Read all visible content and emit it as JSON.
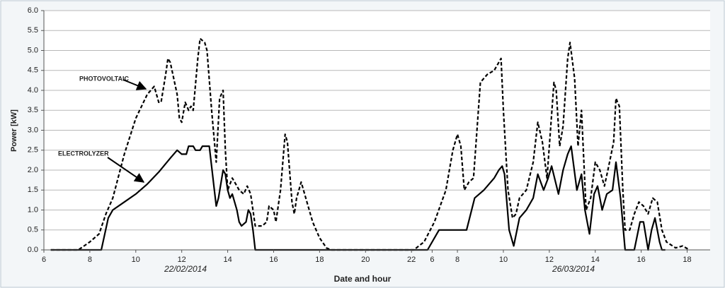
{
  "chart_data": {
    "type": "line",
    "xlabel": "Date and hour",
    "ylabel": "Power [kW]",
    "date_labels": [
      "22/02/2014",
      "26/03/2014"
    ],
    "xlim": [
      6,
      35
    ],
    "ylim": [
      0,
      6
    ],
    "xticks": [
      6,
      8,
      10,
      12,
      14,
      16,
      18,
      20,
      22,
      {
        "value": 22.9,
        "label": "6"
      },
      {
        "value": 24,
        "label": "8"
      },
      {
        "value": 26,
        "label": "10"
      },
      {
        "value": 28,
        "label": "12"
      },
      {
        "value": 30,
        "label": "14"
      },
      {
        "value": 32,
        "label": "16"
      },
      {
        "value": 34,
        "label": "18"
      }
    ],
    "yticks": [
      {
        "value": 0,
        "label": "0.0"
      },
      {
        "value": 0.5,
        "label": "0.5"
      },
      {
        "value": 1,
        "label": "1.0"
      },
      {
        "value": 1.5,
        "label": "1.5"
      },
      {
        "value": 2,
        "label": "2.0"
      },
      {
        "value": 2.5,
        "label": "2.5"
      },
      {
        "value": 3,
        "label": "3.0"
      },
      {
        "value": 3.5,
        "label": "3.5"
      },
      {
        "value": 4,
        "label": "4.0"
      },
      {
        "value": 4.5,
        "label": "4.5"
      },
      {
        "value": 5,
        "label": "5.0"
      },
      {
        "value": 5.5,
        "label": "5.5"
      },
      {
        "value": 6,
        "label": "6.0"
      }
    ],
    "grid": true,
    "series": [
      {
        "name": "PHOTOVOLTAIC",
        "color": "#000000",
        "dashed": true,
        "x": [
          6.3,
          7.5,
          8.0,
          8.4,
          8.7,
          9.0,
          9.5,
          10.0,
          10.5,
          10.8,
          11.0,
          11.1,
          11.3,
          11.4,
          11.5,
          11.8,
          11.9,
          12.0,
          12.15,
          12.3,
          12.4,
          12.5,
          12.7,
          12.8,
          13.0,
          13.1,
          13.3,
          13.5,
          13.65,
          13.8,
          13.9,
          14.0,
          14.2,
          14.4,
          14.5,
          14.7,
          14.85,
          15.0,
          15.2,
          15.5,
          15.7,
          15.8,
          16.0,
          16.1,
          16.3,
          16.5,
          16.6,
          16.8,
          16.9,
          17.0,
          17.2,
          17.4,
          17.7,
          18.0,
          18.3,
          18.5,
          22.1,
          22.55,
          23.0,
          23.5,
          23.8,
          24.0,
          24.15,
          24.3,
          24.5,
          24.7,
          25.0,
          25.3,
          25.6,
          25.9,
          26.0,
          26.2,
          26.4,
          26.55,
          26.7,
          27.0,
          27.3,
          27.5,
          27.7,
          27.9,
          28.05,
          28.2,
          28.3,
          28.45,
          28.6,
          28.8,
          28.9,
          29.1,
          29.25,
          29.4,
          29.6,
          29.8,
          30.0,
          30.2,
          30.4,
          30.55,
          30.8,
          30.9,
          31.05,
          31.2,
          31.3,
          31.5,
          31.7,
          31.9,
          32.1,
          32.3,
          32.5,
          32.7,
          32.9,
          33.1,
          33.5,
          33.8,
          34.1
        ],
        "values": [
          0,
          0,
          0.2,
          0.4,
          0.9,
          1.3,
          2.4,
          3.3,
          3.9,
          4.1,
          3.7,
          3.7,
          4.4,
          4.8,
          4.7,
          3.9,
          3.3,
          3.2,
          3.7,
          3.5,
          3.6,
          3.5,
          4.8,
          5.3,
          5.2,
          5.0,
          3.5,
          2.2,
          3.8,
          4.0,
          2.5,
          1.5,
          1.8,
          1.6,
          1.5,
          1.4,
          1.6,
          1.4,
          0.6,
          0.6,
          0.7,
          1.1,
          1.0,
          0.7,
          1.5,
          2.9,
          2.7,
          1.2,
          0.9,
          1.3,
          1.7,
          1.3,
          0.7,
          0.3,
          0.05,
          0,
          0,
          0.2,
          0.7,
          1.5,
          2.5,
          2.9,
          2.6,
          1.5,
          1.7,
          1.8,
          4.2,
          4.4,
          4.5,
          4.8,
          3.5,
          1.5,
          0.8,
          0.9,
          1.3,
          1.5,
          2.2,
          3.2,
          2.7,
          1.8,
          3.0,
          4.2,
          4.0,
          2.6,
          3.1,
          4.8,
          5.2,
          4.3,
          2.6,
          3.5,
          1.0,
          1.3,
          2.2,
          2.0,
          1.6,
          2.0,
          2.7,
          3.8,
          3.6,
          1.5,
          0.5,
          0.5,
          0.9,
          1.2,
          1.1,
          0.9,
          1.3,
          1.2,
          0.5,
          0.2,
          0.05,
          0.1,
          0
        ]
      },
      {
        "name": "ELECTROLYZER",
        "color": "#000000",
        "dashed": false,
        "x": [
          6.3,
          8.5,
          8.8,
          9.0,
          9.5,
          10.0,
          10.5,
          11.0,
          11.5,
          11.8,
          12.0,
          12.2,
          12.3,
          12.5,
          12.6,
          12.8,
          12.9,
          13.2,
          13.4,
          13.5,
          13.6,
          13.8,
          13.9,
          14.0,
          14.1,
          14.2,
          14.4,
          14.5,
          14.6,
          14.8,
          14.9,
          15.0,
          15.1,
          15.2,
          22.7,
          23.2,
          24.4,
          24.75,
          25.15,
          25.6,
          25.8,
          25.95,
          26.05,
          26.25,
          26.45,
          26.7,
          27.0,
          27.3,
          27.5,
          27.75,
          27.95,
          28.1,
          28.4,
          28.6,
          28.8,
          28.95,
          29.2,
          29.4,
          29.55,
          29.75,
          29.95,
          30.1,
          30.3,
          30.5,
          30.75,
          30.9,
          31.1,
          31.3,
          31.7,
          31.95,
          32.1,
          32.3,
          32.45,
          32.6,
          32.8,
          32.9,
          33.05
        ],
        "values": [
          0,
          0,
          0.8,
          1.0,
          1.2,
          1.4,
          1.65,
          1.95,
          2.3,
          2.5,
          2.4,
          2.4,
          2.6,
          2.6,
          2.5,
          2.5,
          2.6,
          2.6,
          1.6,
          1.1,
          1.3,
          2.0,
          1.9,
          1.5,
          1.3,
          1.4,
          1.0,
          0.7,
          0.6,
          0.7,
          1.0,
          0.9,
          0.5,
          0,
          0,
          0.5,
          0.5,
          1.3,
          1.5,
          1.8,
          2.0,
          2.1,
          1.9,
          0.5,
          0.1,
          0.8,
          1.0,
          1.3,
          1.9,
          1.5,
          1.8,
          2.1,
          1.4,
          2.0,
          2.4,
          2.6,
          1.5,
          1.9,
          1.0,
          0.4,
          1.4,
          1.6,
          1.0,
          1.4,
          1.5,
          2.2,
          1.3,
          0,
          0,
          0.7,
          0.7,
          0,
          0.5,
          0.8,
          0.2,
          0,
          0
        ]
      }
    ]
  }
}
